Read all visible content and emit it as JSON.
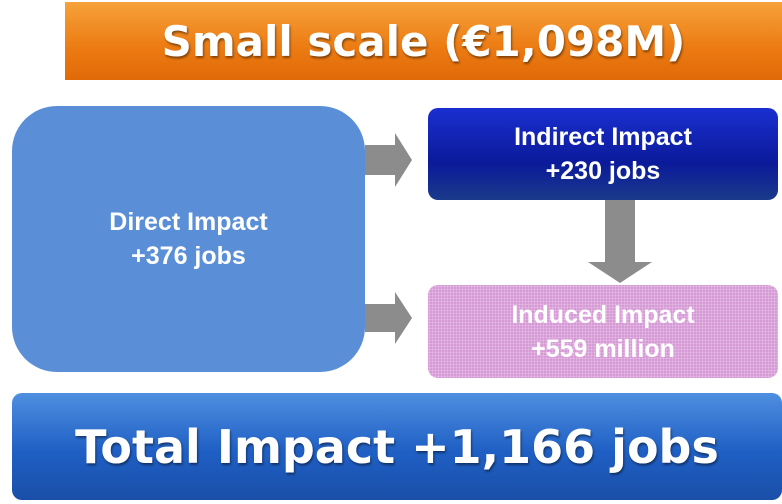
{
  "title": "Small scale (€1,098M)",
  "nodes": [
    {
      "label": "Direct Impact",
      "value": "+376 jobs"
    },
    {
      "label": "Indirect Impact",
      "value": "+230 jobs"
    },
    {
      "label": "Induced Impact",
      "value": "+559 million"
    }
  ],
  "total": "Total Impact +1,166 jobs"
}
